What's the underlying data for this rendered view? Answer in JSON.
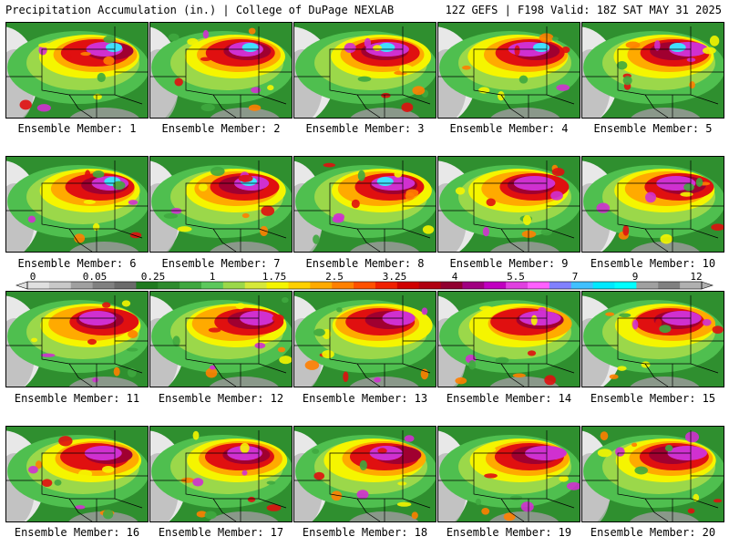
{
  "header": {
    "left": "Precipitation Accumulation (in.) | College of DuPage NEXLAB",
    "right": "12Z GEFS | F198 Valid: 18Z SAT MAY 31 2025"
  },
  "panels": [
    {
      "label": "Ensemble Member: 1"
    },
    {
      "label": "Ensemble Member: 2"
    },
    {
      "label": "Ensemble Member: 3"
    },
    {
      "label": "Ensemble Member: 4"
    },
    {
      "label": "Ensemble Member: 5"
    },
    {
      "label": "Ensemble Member: 6"
    },
    {
      "label": "Ensemble Member: 7"
    },
    {
      "label": "Ensemble Member: 8"
    },
    {
      "label": "Ensemble Member: 9"
    },
    {
      "label": "Ensemble Member: 10"
    },
    {
      "label": "Ensemble Member: 11"
    },
    {
      "label": "Ensemble Member: 12"
    },
    {
      "label": "Ensemble Member: 13"
    },
    {
      "label": "Ensemble Member: 14"
    },
    {
      "label": "Ensemble Member: 15"
    },
    {
      "label": "Ensemble Member: 16"
    },
    {
      "label": "Ensemble Member: 17"
    },
    {
      "label": "Ensemble Member: 18"
    },
    {
      "label": "Ensemble Member: 19"
    },
    {
      "label": "Ensemble Member: 20"
    }
  ],
  "colorbar": {
    "tick_labels": [
      "0",
      "0.05",
      "0.25",
      "1",
      "1.75",
      "2.5",
      "3.25",
      "4",
      "5.5",
      "7",
      "9",
      "12"
    ],
    "colors": [
      "#e0e0e0",
      "#c8c8c8",
      "#a0a0a0",
      "#808080",
      "#6a6a6a",
      "#1f7a1f",
      "#2e8b2e",
      "#3fa83f",
      "#5cc85c",
      "#9bd84a",
      "#d6e83a",
      "#f5f500",
      "#ffd000",
      "#ffaa00",
      "#ff8000",
      "#ff5000",
      "#f02000",
      "#d00000",
      "#b00010",
      "#900030",
      "#a00080",
      "#c000c0",
      "#e040e0",
      "#ff60ff",
      "#8080ff",
      "#40c0ff",
      "#00e8ff",
      "#00ffff",
      "#a0a0a0",
      "#808080",
      "#b0b0b0"
    ]
  }
}
